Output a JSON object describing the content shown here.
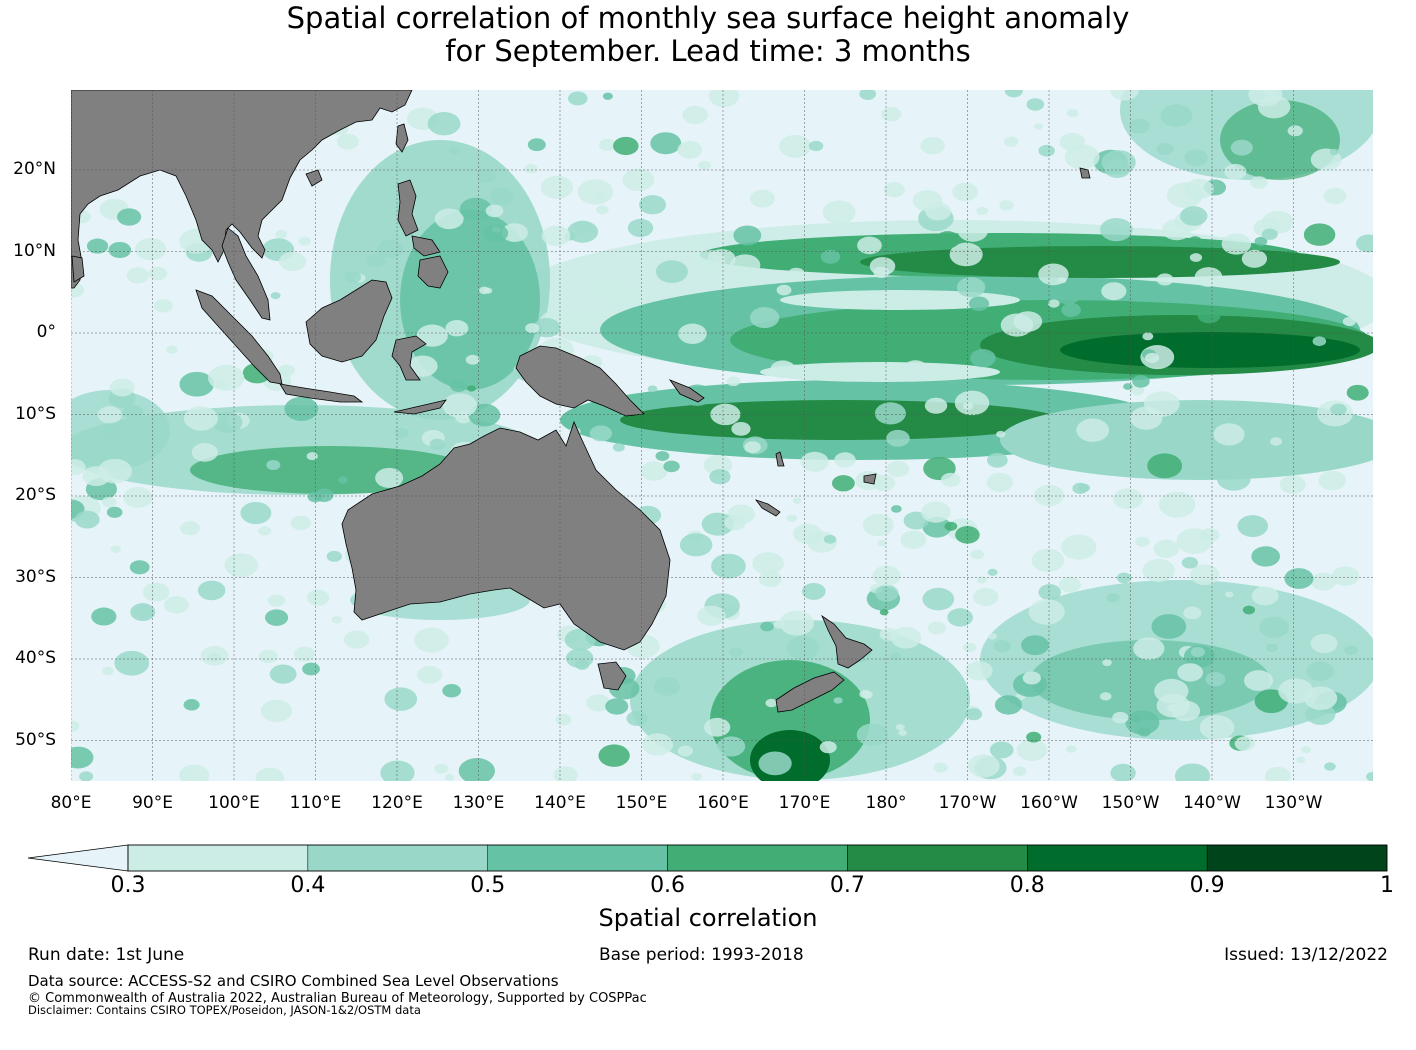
{
  "title": {
    "line1": "Spatial correlation of monthly sea surface height anomaly",
    "line2": "for September. Lead time: 3 months"
  },
  "map": {
    "ocean_color": "#e6f4f9",
    "land_color": "#808080",
    "lat_labels": [
      "20°N",
      "10°N",
      "0°",
      "10°S",
      "20°S",
      "30°S",
      "40°S",
      "50°S"
    ],
    "lon_labels": [
      "80°E",
      "90°E",
      "100°E",
      "110°E",
      "120°E",
      "130°E",
      "140°E",
      "150°E",
      "160°E",
      "170°E",
      "180°",
      "170°W",
      "160°W",
      "150°W",
      "140°W",
      "130°W"
    ]
  },
  "colorbar": {
    "label": "Spatial correlation",
    "ticks": [
      "0.3",
      "0.4",
      "0.5",
      "0.6",
      "0.7",
      "0.8",
      "0.9",
      "1"
    ],
    "under_color": "#e6f4f9",
    "colors": [
      "#ccece6",
      "#99d8c9",
      "#66c2a4",
      "#41ae76",
      "#238b45",
      "#006d2c",
      "#00441b"
    ]
  },
  "footer": {
    "run_date": "Run date: 1st June",
    "base_period": "Base period: 1993-2018",
    "issued": "Issued: 13/12/2022",
    "data_source": "Data source: ACCESS-S2 and CSIRO Combined Sea Level Observations",
    "copyright": "© Commonwealth of Australia 2022, Australian Bureau of Meteorology, Supported by COSPPac",
    "disclaimer": "Disclaimer: Contains CSIRO TOPEX/Poseidon, JASON-1&2/OSTM data"
  }
}
